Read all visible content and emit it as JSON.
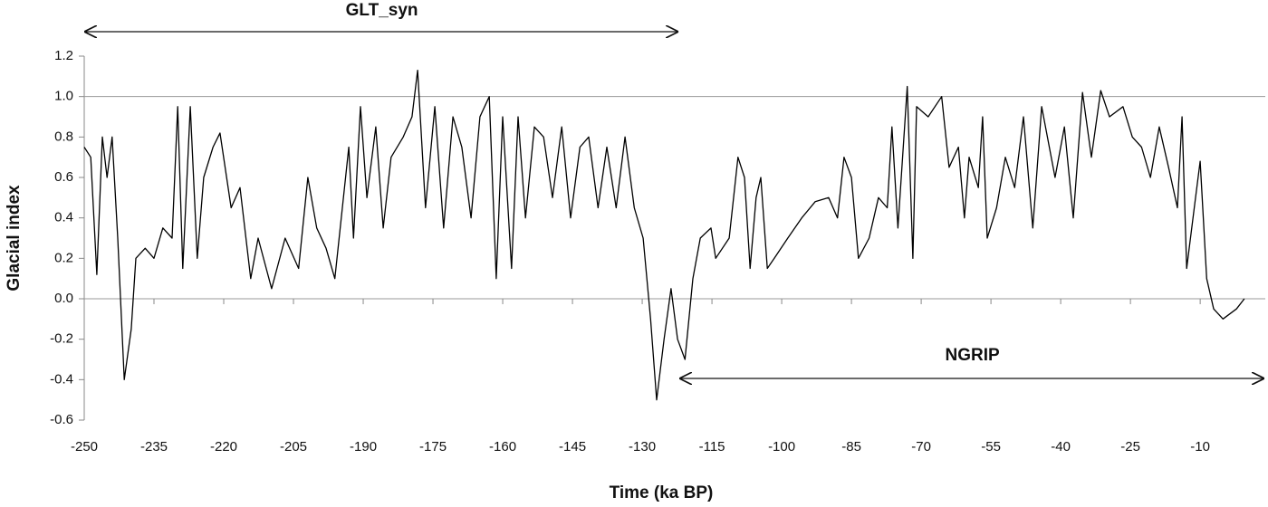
{
  "chart_data": {
    "type": "line",
    "xlabel": "Time (ka BP)",
    "ylabel": "Glacial index",
    "color": "#000000",
    "x": [
      -250,
      -248.6,
      -247.3,
      -246.1,
      -245.1,
      -244,
      -242.8,
      -241.4,
      -239.9,
      -238.9,
      -236.9,
      -235,
      -233.1,
      -231.1,
      -229.9,
      -228.8,
      -227.2,
      -225.7,
      -224.3,
      -222.3,
      -220.8,
      -218.4,
      -216.5,
      -214.2,
      -212.6,
      -209.7,
      -206.8,
      -203.9,
      -201.9,
      -200,
      -198,
      -196.1,
      -193.1,
      -192.1,
      -190.6,
      -189.2,
      -187.3,
      -185.7,
      -184,
      -181.4,
      -179.5,
      -178.3,
      -176.6,
      -174.6,
      -172.7,
      -170.7,
      -168.8,
      -166.8,
      -164.9,
      -162.9,
      -161.4,
      -160,
      -158.1,
      -156.7,
      -155.1,
      -153.2,
      -151.2,
      -149.3,
      -147.3,
      -145.4,
      -143.4,
      -141.5,
      -139.5,
      -137.6,
      -135.6,
      -133.7,
      -131.7,
      -129.8,
      -128.2,
      -126.9,
      -125.3,
      -123.8,
      -122.4,
      -120.8,
      -119.1,
      -117.5,
      -115.2,
      -114.2,
      -111.3,
      -109.4,
      -108,
      -106.8,
      -105.5,
      -104.5,
      -103.1,
      -101.6,
      -98.7,
      -95.7,
      -92.8,
      -89.9,
      -88,
      -86.6,
      -85,
      -83.5,
      -81.2,
      -79.2,
      -77.3,
      -76.3,
      -75,
      -73,
      -71.8,
      -71,
      -68.5,
      -65.6,
      -64,
      -62,
      -60.7,
      -59.7,
      -57.7,
      -56.8,
      -55.8,
      -53.8,
      -51.9,
      -49.9,
      -48,
      -46,
      -44.1,
      -41.2,
      -39.2,
      -37.3,
      -35.3,
      -33.4,
      -31.4,
      -29.5,
      -26.6,
      -24.6,
      -22.6,
      -20.7,
      -18.8,
      -16.8,
      -14.9,
      -13.9,
      -12.9,
      -11,
      -10,
      -8.6,
      -7.1,
      -5.1,
      -2.2,
      -0.5
    ],
    "values": [
      0.75,
      0.7,
      0.12,
      0.8,
      0.6,
      0.8,
      0.3,
      -0.4,
      -0.15,
      0.2,
      0.25,
      0.2,
      0.35,
      0.3,
      0.95,
      0.15,
      0.95,
      0.2,
      0.6,
      0.75,
      0.82,
      0.45,
      0.55,
      0.1,
      0.3,
      0.05,
      0.3,
      0.15,
      0.6,
      0.35,
      0.25,
      0.1,
      0.75,
      0.3,
      0.95,
      0.5,
      0.85,
      0.35,
      0.7,
      0.8,
      0.9,
      1.13,
      0.45,
      0.95,
      0.35,
      0.9,
      0.75,
      0.4,
      0.9,
      1.0,
      0.1,
      0.9,
      0.15,
      0.9,
      0.4,
      0.85,
      0.8,
      0.5,
      0.85,
      0.4,
      0.75,
      0.8,
      0.45,
      0.75,
      0.45,
      0.8,
      0.45,
      0.3,
      -0.1,
      -0.5,
      -0.2,
      0.05,
      -0.2,
      -0.3,
      0.1,
      0.3,
      0.35,
      0.2,
      0.3,
      0.7,
      0.6,
      0.15,
      0.5,
      0.6,
      0.15,
      0.2,
      0.3,
      0.4,
      0.48,
      0.5,
      0.4,
      0.7,
      0.6,
      0.2,
      0.3,
      0.5,
      0.45,
      0.85,
      0.35,
      1.05,
      0.2,
      0.95,
      0.9,
      1.0,
      0.65,
      0.75,
      0.4,
      0.7,
      0.55,
      0.9,
      0.3,
      0.45,
      0.7,
      0.55,
      0.9,
      0.35,
      0.95,
      0.6,
      0.85,
      0.4,
      1.02,
      0.7,
      1.03,
      0.9,
      0.95,
      0.8,
      0.75,
      0.6,
      0.85,
      0.65,
      0.45,
      0.9,
      0.15,
      0.5,
      0.68,
      0.1,
      -0.05,
      -0.1,
      -0.05,
      0.0
    ],
    "xlim": [
      -250,
      4
    ],
    "xticks": [
      -250,
      -235,
      -220,
      -205,
      -190,
      -175,
      -160,
      -145,
      -130,
      -115,
      -100,
      -85,
      -70,
      -55,
      -40,
      -25,
      -10
    ],
    "ylim": [
      -0.6,
      1.2
    ],
    "yticks": [
      -0.6,
      -0.4,
      -0.2,
      {
        "value": 0,
        "label": "0.0"
      },
      0.2,
      0.4,
      0.6,
      0.8,
      {
        "value": 1,
        "label": "1.0"
      },
      1.2
    ],
    "hlines": [
      0,
      1
    ],
    "annotations": [
      {
        "text": "GLT_syn",
        "x_range": [
          -250,
          -122
        ]
      },
      {
        "text": "NGRIP",
        "x_range": [
          -122,
          4
        ]
      }
    ]
  }
}
